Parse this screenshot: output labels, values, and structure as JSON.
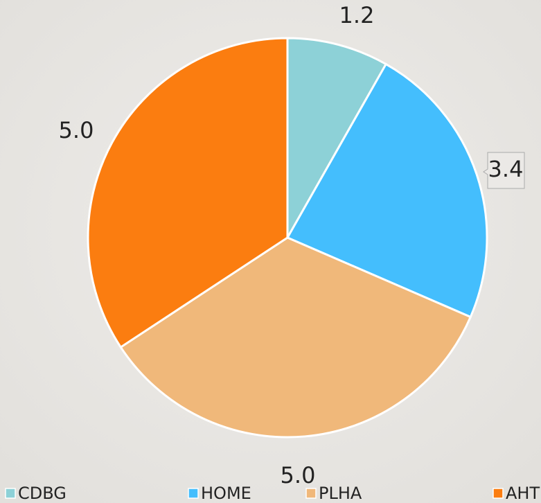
{
  "chart_data": {
    "type": "pie",
    "categories": [
      "CDBG",
      "HOME",
      "PLHA",
      "AHTF"
    ],
    "values": [
      1.2,
      3.4,
      5.0,
      5.0
    ],
    "value_labels": [
      "1.2",
      "3.4",
      "5.0",
      "5.0"
    ],
    "colors": [
      "#8dd1d7",
      "#44befd",
      "#f0b87a",
      "#fb7d10"
    ],
    "legend": "bottom"
  }
}
